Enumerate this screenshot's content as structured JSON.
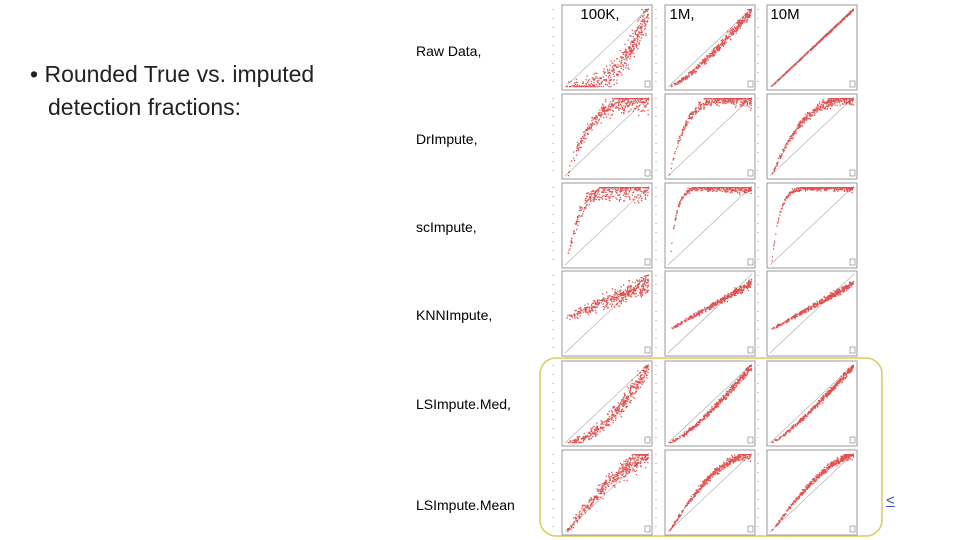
{
  "bullet": "Rounded True vs. imputed detection fractions:",
  "columns": [
    "100K,",
    "1M,",
    "10M"
  ],
  "rows": [
    "Raw Data,",
    "DrImpute,",
    "scImpute,",
    "KNNImpute,",
    "LSImpute.Med,",
    "LSImpute.Mean"
  ],
  "link": "<"
}
